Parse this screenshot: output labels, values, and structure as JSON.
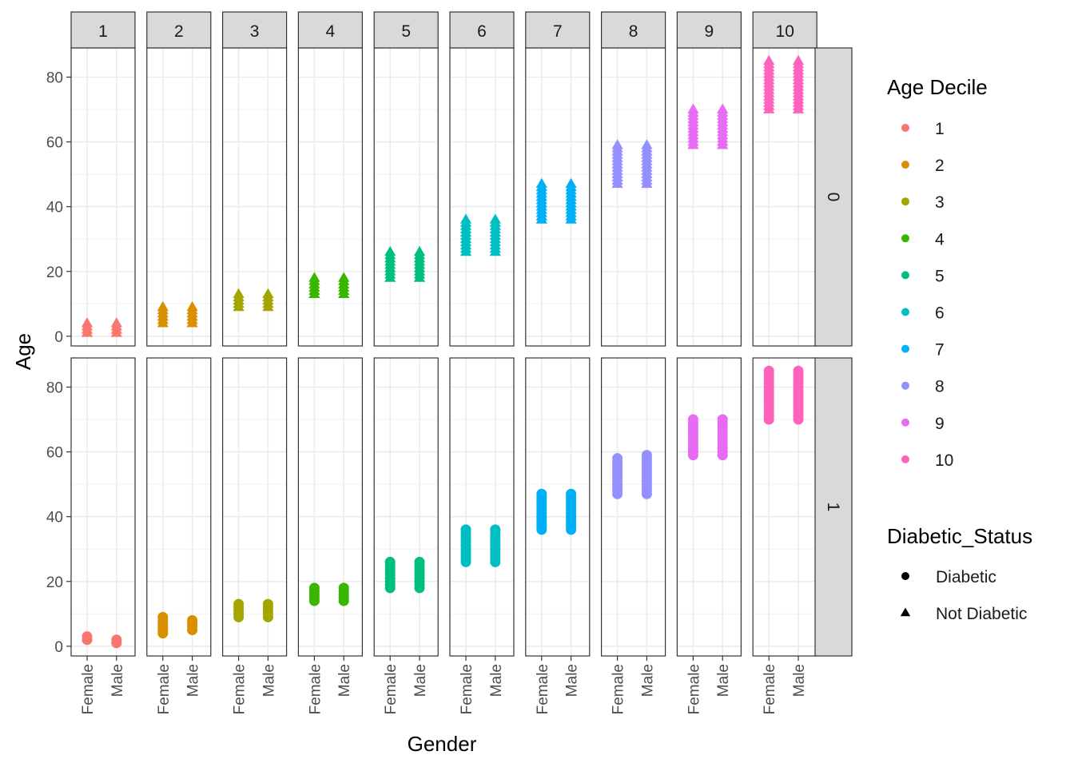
{
  "chart_data": {
    "type": "scatter",
    "xlabel": "Gender",
    "ylabel": "Age",
    "x_categories": [
      "Female",
      "Male"
    ],
    "ylim": [
      -3,
      89
    ],
    "y_ticks": [
      0,
      20,
      40,
      60,
      80
    ],
    "grid": true,
    "col_facets": [
      "1",
      "2",
      "3",
      "4",
      "5",
      "6",
      "7",
      "8",
      "9",
      "10"
    ],
    "row_facets": [
      "0",
      "1"
    ],
    "legend_color": {
      "title": "Age Decile",
      "entries": [
        {
          "label": "1",
          "color": "#F8766D"
        },
        {
          "label": "2",
          "color": "#D89000"
        },
        {
          "label": "3",
          "color": "#A3A500"
        },
        {
          "label": "4",
          "color": "#39B600"
        },
        {
          "label": "5",
          "color": "#00BF7D"
        },
        {
          "label": "6",
          "color": "#00BFC4"
        },
        {
          "label": "7",
          "color": "#00B0F6"
        },
        {
          "label": "8",
          "color": "#9590FF"
        },
        {
          "label": "9",
          "color": "#E76BF3"
        },
        {
          "label": "10",
          "color": "#FF62BC"
        }
      ]
    },
    "legend_shape": {
      "title": "Diabetic_Status",
      "entries": [
        {
          "label": "Diabetic",
          "shape": "circle"
        },
        {
          "label": "Not Diabetic",
          "shape": "triangle"
        }
      ]
    },
    "legend_position": "right",
    "points": {
      "row_0": [
        {
          "decile": "1",
          "Female": [
            1,
            4
          ],
          "Male": [
            1,
            4
          ]
        },
        {
          "decile": "2",
          "Female": [
            4,
            9
          ],
          "Male": [
            4,
            9
          ]
        },
        {
          "decile": "3",
          "Female": [
            9,
            13
          ],
          "Male": [
            9,
            13
          ]
        },
        {
          "decile": "4",
          "Female": [
            13,
            18
          ],
          "Male": [
            13,
            18
          ]
        },
        {
          "decile": "5",
          "Female": [
            18,
            26
          ],
          "Male": [
            18,
            26
          ]
        },
        {
          "decile": "6",
          "Female": [
            26,
            36
          ],
          "Male": [
            26,
            36
          ]
        },
        {
          "decile": "7",
          "Female": [
            36,
            47
          ],
          "Male": [
            36,
            47
          ]
        },
        {
          "decile": "8",
          "Female": [
            47,
            59
          ],
          "Male": [
            47,
            59
          ]
        },
        {
          "decile": "9",
          "Female": [
            59,
            70
          ],
          "Male": [
            59,
            70
          ]
        },
        {
          "decile": "10",
          "Female": [
            70,
            85
          ],
          "Male": [
            70,
            85
          ]
        }
      ],
      "row_1": [
        {
          "decile": "1",
          "Female": [
            2,
            3
          ],
          "Male": [
            1,
            2
          ]
        },
        {
          "decile": "2",
          "Female": [
            4,
            9
          ],
          "Male": [
            5,
            8
          ]
        },
        {
          "decile": "3",
          "Female": [
            9,
            13
          ],
          "Male": [
            9,
            13
          ]
        },
        {
          "decile": "4",
          "Female": [
            14,
            18
          ],
          "Male": [
            14,
            18
          ]
        },
        {
          "decile": "5",
          "Female": [
            18,
            26
          ],
          "Male": [
            18,
            26
          ]
        },
        {
          "decile": "6",
          "Female": [
            26,
            36
          ],
          "Male": [
            26,
            36
          ]
        },
        {
          "decile": "7",
          "Female": [
            36,
            47
          ],
          "Male": [
            36,
            47
          ]
        },
        {
          "decile": "8",
          "Female": [
            47,
            58
          ],
          "Male": [
            47,
            59
          ]
        },
        {
          "decile": "9",
          "Female": [
            59,
            70
          ],
          "Male": [
            59,
            70
          ]
        },
        {
          "decile": "10",
          "Female": [
            70,
            85
          ],
          "Male": [
            70,
            85
          ]
        }
      ]
    }
  }
}
